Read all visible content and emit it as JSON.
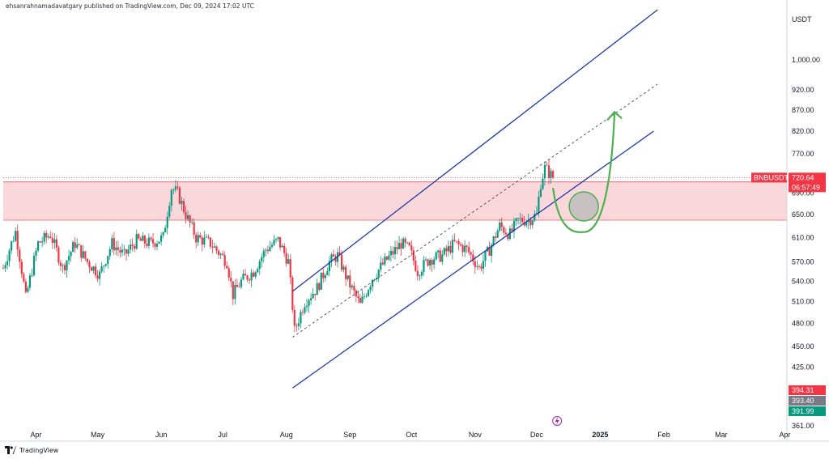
{
  "publisher": "ehsanrahnamadavatgary published on TradingView.com, Dec 09, 2024 17:02 UTC",
  "brand": "TradingView",
  "currency_label": "USDT",
  "symbol_tag": "BNBUSDT",
  "price_tag": "720.64",
  "countdown_tag": "06:57:49",
  "price_badges": [
    "394.31",
    "393.40",
    "391.99"
  ],
  "colors": {
    "up": "#089981",
    "down": "#f23645",
    "channel": "#1e3aa8",
    "zone_fill": "#f8c9cd",
    "zone_border": "#e05a63",
    "arrow": "#4caf50",
    "circle_fill": "#bdbdbd"
  },
  "icons": {
    "event_marker": "lightning-icon"
  },
  "chart_data": {
    "type": "candlestick",
    "ylim": [
      361,
      1150
    ],
    "y_scale": "log",
    "y_ticks": [
      "1,000.00",
      "920.00",
      "870.00",
      "820.00",
      "770.00",
      "720.00",
      "690.00",
      "650.00",
      "610.00",
      "570.00",
      "540.00",
      "510.00",
      "480.00",
      "450.00",
      "425.00",
      "401.00",
      "361.00"
    ],
    "x_ticks": [
      "Apr",
      "May",
      "Jun",
      "Jul",
      "Aug",
      "Sep",
      "Oct",
      "Nov",
      "Dec",
      "2025",
      "Feb",
      "Mar",
      "Apr"
    ],
    "x_range": [
      "2024-03-16",
      "2025-04-02"
    ],
    "zone": {
      "low": 640,
      "high": 712
    },
    "last_price": 720.64,
    "annotations": {
      "channel_upper": [
        [
          "2024-08-04",
          525
        ],
        [
          "2025-01-29",
          1150
        ]
      ],
      "channel_lower": [
        [
          "2024-08-04",
          401
        ],
        [
          "2025-01-27",
          820
        ]
      ],
      "channel_mid": [
        [
          "2024-08-04",
          462
        ],
        [
          "2025-01-29",
          935
        ]
      ],
      "projection_curve": [
        [
          "2024-12-09",
          700
        ],
        [
          "2024-12-24",
          655
        ],
        [
          "2025-01-08",
          865
        ]
      ],
      "support_circle": [
        "2024-12-24",
        665
      ]
    },
    "path": [
      [
        "2024-03-16",
        560
      ],
      [
        "2024-03-22",
        620
      ],
      [
        "2024-03-27",
        515
      ],
      [
        "2024-04-02",
        600
      ],
      [
        "2024-04-08",
        615
      ],
      [
        "2024-04-14",
        560
      ],
      [
        "2024-04-20",
        600
      ],
      [
        "2024-04-26",
        570
      ],
      [
        "2024-05-02",
        550
      ],
      [
        "2024-05-08",
        600
      ],
      [
        "2024-05-14",
        580
      ],
      [
        "2024-05-20",
        605
      ],
      [
        "2024-05-27",
        600
      ],
      [
        "2024-06-02",
        610
      ],
      [
        "2024-06-06",
        700
      ],
      [
        "2024-06-09",
        690
      ],
      [
        "2024-06-13",
        650
      ],
      [
        "2024-06-18",
        610
      ],
      [
        "2024-06-25",
        600
      ],
      [
        "2024-07-03",
        570
      ],
      [
        "2024-07-06",
        520
      ],
      [
        "2024-07-10",
        540
      ],
      [
        "2024-07-16",
        555
      ],
      [
        "2024-07-22",
        590
      ],
      [
        "2024-07-28",
        605
      ],
      [
        "2024-08-02",
        570
      ],
      [
        "2024-08-05",
        470
      ],
      [
        "2024-08-10",
        510
      ],
      [
        "2024-08-16",
        530
      ],
      [
        "2024-08-22",
        570
      ],
      [
        "2024-08-26",
        580
      ],
      [
        "2024-08-31",
        540
      ],
      [
        "2024-09-06",
        505
      ],
      [
        "2024-09-12",
        545
      ],
      [
        "2024-09-18",
        570
      ],
      [
        "2024-09-26",
        600
      ],
      [
        "2024-09-30",
        590
      ],
      [
        "2024-10-04",
        555
      ],
      [
        "2024-10-10",
        575
      ],
      [
        "2024-10-16",
        580
      ],
      [
        "2024-10-22",
        600
      ],
      [
        "2024-10-28",
        590
      ],
      [
        "2024-11-03",
        560
      ],
      [
        "2024-11-08",
        590
      ],
      [
        "2024-11-13",
        630
      ],
      [
        "2024-11-18",
        615
      ],
      [
        "2024-11-22",
        640
      ],
      [
        "2024-11-27",
        640
      ],
      [
        "2024-12-01",
        650
      ],
      [
        "2024-12-03",
        710
      ],
      [
        "2024-12-05",
        740
      ],
      [
        "2024-12-09",
        720.64
      ]
    ]
  }
}
